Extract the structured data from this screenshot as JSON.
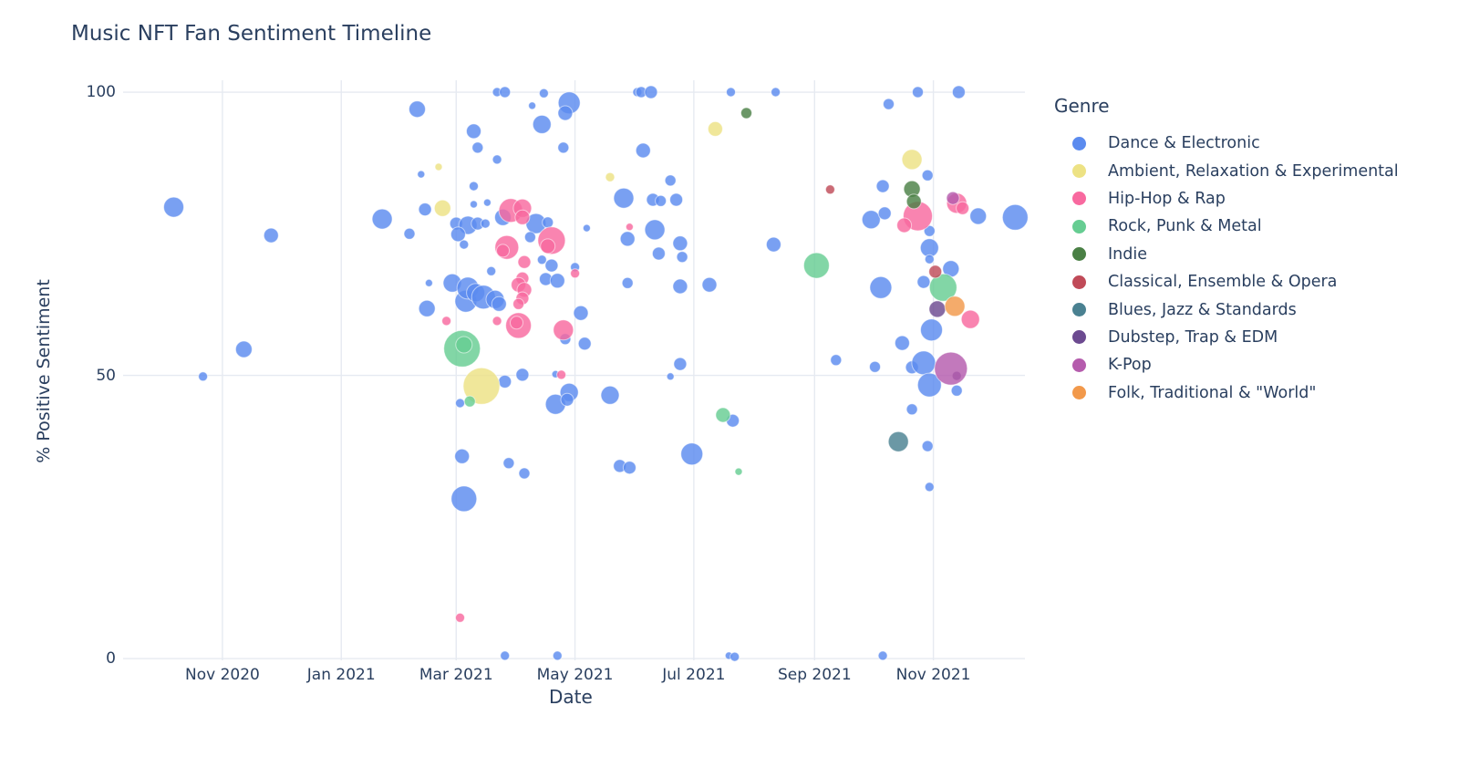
{
  "chart": {
    "title": "Music NFT Fan Sentiment Timeline",
    "x_label": "Date",
    "y_label": "% Positive Sentiment",
    "legend_title": "Genre"
  },
  "chart_data": {
    "type": "scatter",
    "mode": "bubble",
    "title": "Music NFT Fan Sentiment Timeline",
    "xlabel": "Date",
    "ylabel": "% Positive Sentiment",
    "grid": true,
    "legend_position": "right",
    "x_domain": [
      "2020-09-11",
      "2021-12-18"
    ],
    "y_domain": [
      -0.32,
      102.1
    ],
    "y_ticks": [
      0,
      50,
      100
    ],
    "x_ticks": [
      {
        "date": "2020-11-01",
        "label": "Nov 2020"
      },
      {
        "date": "2021-01-01",
        "label": "Jan 2021"
      },
      {
        "date": "2021-03-01",
        "label": "Mar 2021"
      },
      {
        "date": "2021-05-01",
        "label": "May 2021"
      },
      {
        "date": "2021-07-01",
        "label": "Jul 2021"
      },
      {
        "date": "2021-09-01",
        "label": "Sep 2021"
      },
      {
        "date": "2021-11-01",
        "label": "Nov 2021"
      }
    ],
    "point_format": [
      "date",
      "pct_positive_sentiment",
      "bubble_radius_px"
    ],
    "series": [
      {
        "name": "Dance & Electronic",
        "color": "#5B8BEF",
        "points": [
          [
            "2020-10-07",
            79.7,
            11
          ],
          [
            "2020-10-22",
            49.8,
            5
          ],
          [
            "2020-11-12",
            54.6,
            9
          ],
          [
            "2020-11-26",
            74.7,
            8
          ],
          [
            "2021-01-22",
            77.6,
            11
          ],
          [
            "2021-02-05",
            75.0,
            6
          ],
          [
            "2021-02-09",
            97.0,
            9
          ],
          [
            "2021-02-11",
            85.5,
            4
          ],
          [
            "2021-02-13",
            79.3,
            7
          ],
          [
            "2021-02-14",
            61.8,
            9
          ],
          [
            "2021-02-15",
            66.3,
            4
          ],
          [
            "2021-02-27",
            66.3,
            10
          ],
          [
            "2021-03-06",
            63.1,
            12
          ],
          [
            "2021-03-07",
            65.4,
            12
          ],
          [
            "2021-03-11",
            64.6,
            10
          ],
          [
            "2021-03-15",
            63.8,
            13
          ],
          [
            "2021-03-21",
            63.4,
            10
          ],
          [
            "2021-03-23",
            62.6,
            8
          ],
          [
            "2021-03-01",
            76.8,
            7
          ],
          [
            "2021-03-07",
            76.5,
            10
          ],
          [
            "2021-03-12",
            76.8,
            7
          ],
          [
            "2021-03-16",
            76.8,
            5
          ],
          [
            "2021-03-02",
            74.9,
            8
          ],
          [
            "2021-03-05",
            73.1,
            5
          ],
          [
            "2021-03-10",
            80.2,
            4
          ],
          [
            "2021-03-17",
            80.5,
            4
          ],
          [
            "2021-03-25",
            77.9,
            9
          ],
          [
            "2021-03-10",
            83.4,
            5
          ],
          [
            "2021-03-10",
            93.1,
            8
          ],
          [
            "2021-03-12",
            90.2,
            6
          ],
          [
            "2021-03-22",
            100,
            5
          ],
          [
            "2021-03-26",
            100,
            6
          ],
          [
            "2021-03-22",
            88.1,
            5
          ],
          [
            "2021-04-09",
            97.6,
            4
          ],
          [
            "2021-04-14",
            94.3,
            10
          ],
          [
            "2021-04-15",
            99.8,
            5
          ],
          [
            "2021-04-25",
            90.2,
            6
          ],
          [
            "2021-04-28",
            98.1,
            12
          ],
          [
            "2021-04-26",
            96.3,
            8
          ],
          [
            "2021-04-11",
            76.8,
            11
          ],
          [
            "2021-04-17",
            77.0,
            6
          ],
          [
            "2021-04-08",
            74.4,
            6
          ],
          [
            "2021-04-14",
            70.4,
            5
          ],
          [
            "2021-04-19",
            69.4,
            7
          ],
          [
            "2021-05-01",
            69.1,
            5
          ],
          [
            "2021-04-16",
            67.0,
            7
          ],
          [
            "2021-04-22",
            66.7,
            8
          ],
          [
            "2021-05-07",
            76.0,
            4
          ],
          [
            "2021-03-19",
            68.4,
            5
          ],
          [
            "2021-04-26",
            56.4,
            6
          ],
          [
            "2021-04-04",
            50.1,
            7
          ],
          [
            "2021-03-26",
            48.9,
            7
          ],
          [
            "2021-04-21",
            50.2,
            4
          ],
          [
            "2021-04-28",
            47.0,
            10
          ],
          [
            "2021-04-21",
            44.9,
            11
          ],
          [
            "2021-04-27",
            45.7,
            7
          ],
          [
            "2021-05-19",
            46.5,
            10
          ],
          [
            "2021-03-03",
            45.1,
            5
          ],
          [
            "2021-03-04",
            35.7,
            8
          ],
          [
            "2021-03-28",
            34.5,
            6
          ],
          [
            "2021-04-05",
            32.7,
            6
          ],
          [
            "2021-03-05",
            28.2,
            14
          ],
          [
            "2021-05-04",
            61.0,
            8
          ],
          [
            "2021-05-06",
            55.6,
            7
          ],
          [
            "2021-05-24",
            34.0,
            7
          ],
          [
            "2021-05-29",
            33.7,
            7
          ],
          [
            "2021-05-26",
            81.3,
            11
          ],
          [
            "2021-05-28",
            74.1,
            8
          ],
          [
            "2021-05-28",
            66.3,
            6
          ],
          [
            "2021-06-02",
            100,
            5
          ],
          [
            "2021-06-04",
            100,
            6
          ],
          [
            "2021-06-09",
            100,
            7
          ],
          [
            "2021-06-05",
            89.7,
            8
          ],
          [
            "2021-06-10",
            81.0,
            7
          ],
          [
            "2021-06-14",
            80.8,
            6
          ],
          [
            "2021-06-22",
            81.0,
            7
          ],
          [
            "2021-06-19",
            84.4,
            6
          ],
          [
            "2021-06-11",
            75.7,
            11
          ],
          [
            "2021-06-13",
            71.5,
            7
          ],
          [
            "2021-06-24",
            73.3,
            8
          ],
          [
            "2021-06-25",
            70.9,
            6
          ],
          [
            "2021-06-24",
            65.7,
            8
          ],
          [
            "2021-06-24",
            52.0,
            7
          ],
          [
            "2021-06-19",
            49.8,
            4
          ],
          [
            "2021-06-30",
            36.1,
            12
          ],
          [
            "2021-07-09",
            66.0,
            8
          ],
          [
            "2021-07-20",
            100,
            5
          ],
          [
            "2021-07-21",
            42.0,
            7
          ],
          [
            "2021-08-11",
            73.1,
            8
          ],
          [
            "2021-08-12",
            100,
            5
          ],
          [
            "2021-09-12",
            52.7,
            6
          ],
          [
            "2021-09-30",
            77.5,
            10
          ],
          [
            "2021-10-02",
            51.5,
            6
          ],
          [
            "2021-10-05",
            65.5,
            12
          ],
          [
            "2021-10-06",
            0.5,
            5
          ],
          [
            "2021-10-06",
            83.4,
            7
          ],
          [
            "2021-10-07",
            78.6,
            7
          ],
          [
            "2021-10-09",
            97.9,
            6
          ],
          [
            "2021-10-16",
            55.7,
            8
          ],
          [
            "2021-10-21",
            51.4,
            7
          ],
          [
            "2021-10-27",
            52.2,
            13
          ],
          [
            "2021-10-21",
            44.0,
            6
          ],
          [
            "2021-10-24",
            100,
            6
          ],
          [
            "2021-10-27",
            66.5,
            7
          ],
          [
            "2021-10-29",
            85.3,
            6
          ],
          [
            "2021-10-30",
            75.5,
            6
          ],
          [
            "2021-10-30",
            72.5,
            10
          ],
          [
            "2021-10-30",
            70.5,
            5
          ],
          [
            "2021-10-31",
            58.0,
            12
          ],
          [
            "2021-10-30",
            48.3,
            13
          ],
          [
            "2021-10-29",
            37.5,
            6
          ],
          [
            "2021-10-30",
            30.3,
            5
          ],
          [
            "2021-11-10",
            68.8,
            9
          ],
          [
            "2021-11-13",
            47.3,
            6
          ],
          [
            "2021-11-14",
            100,
            7
          ],
          [
            "2021-11-24",
            78.1,
            9
          ],
          [
            "2021-12-13",
            77.9,
            14
          ],
          [
            "2021-03-26",
            0.5,
            5
          ],
          [
            "2021-04-22",
            0.5,
            5
          ],
          [
            "2021-07-19",
            0.5,
            4
          ],
          [
            "2021-07-22",
            0.3,
            5
          ]
        ]
      },
      {
        "name": "Ambient, Relaxation & Experimental",
        "color": "#EDE284",
        "points": [
          [
            "2021-02-20",
            86.8,
            4
          ],
          [
            "2021-02-22",
            79.5,
            9
          ],
          [
            "2021-03-14",
            48.1,
            20
          ],
          [
            "2021-05-19",
            85.0,
            5
          ],
          [
            "2021-07-12",
            93.5,
            8
          ],
          [
            "2021-10-21",
            88.1,
            11
          ]
        ]
      },
      {
        "name": "Hip-Hop & Rap",
        "color": "#F8699F",
        "points": [
          [
            "2021-03-29",
            79.1,
            13
          ],
          [
            "2021-04-04",
            79.5,
            10
          ],
          [
            "2021-04-04",
            77.9,
            8
          ],
          [
            "2021-04-19",
            73.8,
            15
          ],
          [
            "2021-04-17",
            72.8,
            8
          ],
          [
            "2021-03-27",
            72.6,
            13
          ],
          [
            "2021-03-25",
            72.0,
            7
          ],
          [
            "2021-04-05",
            70.0,
            7
          ],
          [
            "2021-04-04",
            67.1,
            7
          ],
          [
            "2021-05-01",
            68.0,
            5
          ],
          [
            "2021-05-29",
            76.2,
            4
          ],
          [
            "2021-04-02",
            66.0,
            8
          ],
          [
            "2021-04-05",
            65.1,
            8
          ],
          [
            "2021-04-04",
            63.6,
            7
          ],
          [
            "2021-04-02",
            62.6,
            6
          ],
          [
            "2021-04-02",
            58.8,
            14
          ],
          [
            "2021-04-01",
            59.3,
            7
          ],
          [
            "2021-03-22",
            59.6,
            5
          ],
          [
            "2021-04-25",
            58.0,
            11
          ],
          [
            "2021-04-24",
            50.1,
            5
          ],
          [
            "2021-02-24",
            59.6,
            5
          ],
          [
            "2021-03-03",
            7.2,
            5
          ],
          [
            "2021-10-24",
            78.1,
            16
          ],
          [
            "2021-10-17",
            76.5,
            8
          ],
          [
            "2021-11-13",
            80.4,
            11
          ],
          [
            "2021-11-16",
            79.5,
            7
          ],
          [
            "2021-11-20",
            59.9,
            10
          ]
        ]
      },
      {
        "name": "Rock, Punk & Metal",
        "color": "#66CD92",
        "points": [
          [
            "2021-03-04",
            54.7,
            20
          ],
          [
            "2021-03-05",
            55.4,
            9
          ],
          [
            "2021-03-08",
            45.4,
            6
          ],
          [
            "2021-07-16",
            43.0,
            8
          ],
          [
            "2021-07-24",
            33.0,
            4
          ],
          [
            "2021-09-02",
            69.4,
            14
          ],
          [
            "2021-11-06",
            65.5,
            15
          ]
        ]
      },
      {
        "name": "Indie",
        "color": "#4A8045",
        "points": [
          [
            "2021-07-28",
            96.3,
            6
          ],
          [
            "2021-10-21",
            82.9,
            9
          ],
          [
            "2021-10-22",
            80.7,
            8
          ]
        ]
      },
      {
        "name": "Classical, Ensemble & Opera",
        "color": "#C04A58",
        "points": [
          [
            "2021-09-09",
            82.8,
            5
          ],
          [
            "2021-11-02",
            68.3,
            7
          ]
        ]
      },
      {
        "name": "Blues, Jazz & Standards",
        "color": "#4A8191",
        "points": [
          [
            "2021-10-14",
            38.3,
            11
          ]
        ]
      },
      {
        "name": "Dubstep, Trap & EDM",
        "color": "#6C4A90",
        "points": [
          [
            "2021-11-03",
            61.7,
            9
          ],
          [
            "2021-11-13",
            49.9,
            5
          ]
        ]
      },
      {
        "name": "K-Pop",
        "color": "#B55CAD",
        "points": [
          [
            "2021-11-10",
            51.2,
            18
          ],
          [
            "2021-11-11",
            81.3,
            7
          ]
        ]
      },
      {
        "name": "Folk, Traditional & \"World\"",
        "color": "#F2994B",
        "points": [
          [
            "2021-11-12",
            62.2,
            11
          ]
        ]
      }
    ]
  },
  "style": {
    "text_color": "#2A3F5F",
    "grid_color": "#E6EAF1",
    "background": "#FFFFFF"
  }
}
